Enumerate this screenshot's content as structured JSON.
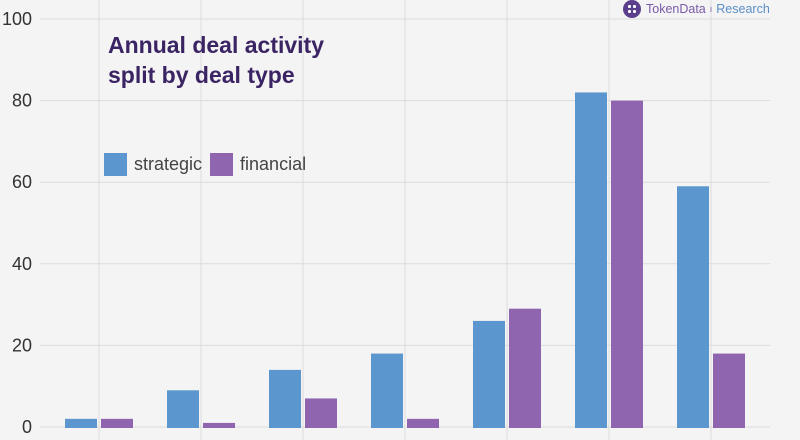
{
  "brand": {
    "name": "TokenData",
    "separator": "ı",
    "sub": "Research",
    "logo_icon": "token-data-logo-icon"
  },
  "chart_data": {
    "type": "bar",
    "title_line1": "Annual deal activity",
    "title_line2": "split by deal type",
    "xlabel": "",
    "ylabel": "",
    "ylim": [
      0,
      100
    ],
    "yticks": [
      0,
      20,
      40,
      60,
      80,
      100
    ],
    "grid": true,
    "legend_position": "upper-left",
    "categories": [
      "",
      "",
      "",
      "",
      "",
      "",
      ""
    ],
    "series": [
      {
        "name": "strategic",
        "color": "#5b97ce",
        "values": [
          2,
          9,
          14,
          18,
          26,
          82,
          59
        ]
      },
      {
        "name": "financial",
        "color": "#9065b0",
        "values": [
          2,
          1,
          7,
          2,
          29,
          80,
          18
        ]
      }
    ]
  }
}
